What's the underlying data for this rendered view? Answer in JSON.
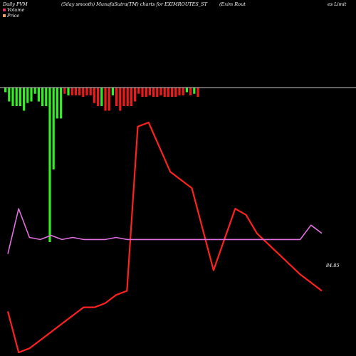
{
  "header": {
    "left": "Daily PVM",
    "center": "(5day smooth) MunafaSutra(TM) charts for EXIMROUTES_ST",
    "right_a": "(Exim Rout",
    "right_b": "es Limit"
  },
  "legend": [
    {
      "label": "Volume",
      "color": "#e0306a"
    },
    {
      "label": "Price",
      "color": "#f0a060"
    }
  ],
  "colors": {
    "up": "#33ee22",
    "down": "#ee1a1a",
    "pvm": "#ff2020",
    "price": "#e070e0",
    "baseline": "#c8c8c8"
  },
  "chart_data": {
    "type": "line",
    "title": "(5day smooth) MunafaSutra(TM) charts for EXIMROUTES_ST",
    "price_label": "84.85",
    "volume_bars": {
      "direction": [
        "up",
        "up",
        "up",
        "up",
        "up",
        "up",
        "up",
        "up",
        "up",
        "up",
        "up",
        "up",
        "up",
        "up",
        "up",
        "up",
        "down",
        "up",
        "down",
        "down",
        "down",
        "down",
        "down",
        "down",
        "down",
        "down",
        "up",
        "down",
        "down",
        "up",
        "down",
        "down",
        "down",
        "down",
        "down",
        "down",
        "down",
        "down",
        "down",
        "down",
        "down",
        "down",
        "down",
        "down",
        "down",
        "down",
        "down",
        "down",
        "down",
        "up",
        "down",
        "up",
        "down"
      ],
      "relative_height": [
        0.03,
        0.09,
        0.12,
        0.12,
        0.12,
        0.15,
        0.1,
        0.09,
        0.04,
        0.09,
        0.12,
        0.12,
        1.0,
        0.53,
        0.2,
        0.2,
        0.04,
        0.05,
        0.05,
        0.05,
        0.05,
        0.06,
        0.05,
        0.05,
        0.1,
        0.12,
        0.12,
        0.15,
        0.15,
        0.05,
        0.12,
        0.15,
        0.12,
        0.12,
        0.12,
        0.09,
        0.04,
        0.06,
        0.06,
        0.05,
        0.06,
        0.06,
        0.05,
        0.06,
        0.06,
        0.06,
        0.06,
        0.05,
        0.05,
        0.03,
        0.05,
        0.04,
        0.06
      ]
    },
    "series": [
      {
        "x": [
          0,
          1,
          2,
          3,
          4,
          5,
          6,
          7,
          8,
          9,
          10,
          11,
          12,
          13,
          14,
          15,
          16,
          17,
          18,
          19,
          20,
          21,
          22,
          23,
          24,
          25,
          26,
          27,
          28,
          29
        ],
        "values": [
          20,
          0,
          2,
          6,
          10,
          14,
          18,
          22,
          22,
          24,
          28,
          30,
          110,
          112,
          100,
          88,
          84,
          80,
          60,
          40,
          55,
          70,
          67,
          58,
          53,
          48,
          43,
          38,
          34,
          30
        ]
      },
      {
        "x": [
          0,
          1,
          2,
          3,
          4,
          5,
          6,
          7,
          8,
          9,
          10,
          11,
          12,
          13,
          14,
          15,
          16,
          17,
          18,
          19,
          20,
          21,
          22,
          23,
          24,
          25,
          26,
          27,
          28,
          29
        ],
        "values": [
          48,
          70,
          56,
          55,
          57,
          55,
          56,
          55,
          55,
          55,
          56,
          55,
          55,
          55,
          55,
          55,
          55,
          55,
          55,
          55,
          55,
          55,
          55,
          55,
          55,
          55,
          55,
          55,
          62,
          58
        ]
      }
    ]
  }
}
